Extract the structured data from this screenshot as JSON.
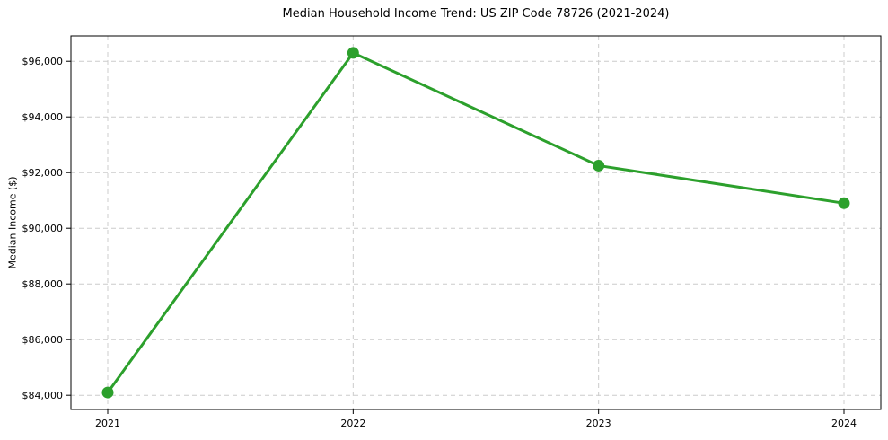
{
  "chart_data": {
    "type": "line",
    "title": "Median Household Income Trend: US ZIP Code 78726 (2021-2024)",
    "xlabel": "",
    "ylabel": "Median Income ($)",
    "categories": [
      "2021",
      "2022",
      "2023",
      "2024"
    ],
    "x": [
      2021,
      2022,
      2023,
      2024
    ],
    "series": [
      {
        "name": "Median Household Income",
        "values": [
          84100,
          96300,
          92250,
          90900
        ],
        "color": "#2ca02c",
        "marker": "circle",
        "marker_radius": 6.5,
        "line_width": 3
      }
    ],
    "y_ticks": [
      84000,
      86000,
      88000,
      90000,
      92000,
      94000,
      96000
    ],
    "y_tick_labels": [
      "$84,000",
      "$86,000",
      "$88,000",
      "$90,000",
      "$92,000",
      "$94,000",
      "$96,000"
    ],
    "x_ticks": [
      2021,
      2022,
      2023,
      2024
    ],
    "x_tick_labels": [
      "2021",
      "2022",
      "2023",
      "2024"
    ],
    "xlim": [
      2020.85,
      2024.15
    ],
    "ylim": [
      83490,
      96910
    ],
    "grid": {
      "show": true,
      "style": "dashed",
      "axes": "both",
      "color": "#cccccc"
    },
    "legend": {
      "show": false
    },
    "axis_color": "#000000",
    "plot_background": "#ffffff"
  }
}
